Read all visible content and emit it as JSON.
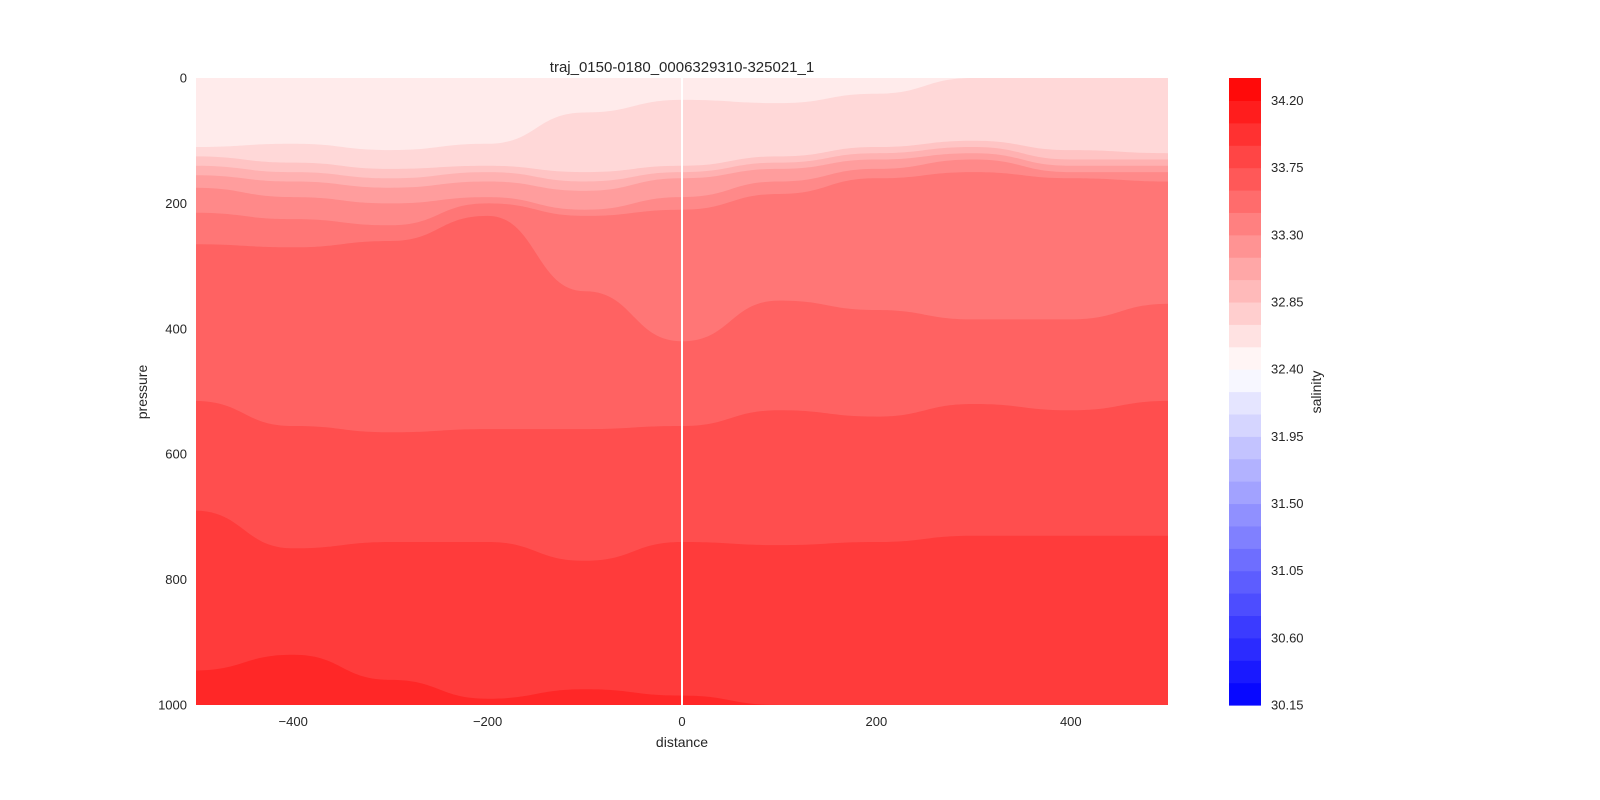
{
  "chart_data": {
    "type": "heatmap",
    "subtype": "filled-contour",
    "title": "traj_0150-0180_0006329310-325021_1",
    "xlabel": "distance",
    "ylabel": "pressure",
    "xlim": [
      -500,
      500
    ],
    "ylim": [
      1000,
      0
    ],
    "y_inverted": true,
    "x_ticks": [
      -400,
      -200,
      0,
      200,
      400
    ],
    "x_tick_labels": [
      "−400",
      "−200",
      "0",
      "200",
      "400"
    ],
    "y_ticks": [
      0,
      200,
      400,
      600,
      800,
      1000
    ],
    "y_tick_labels": [
      "0",
      "200",
      "400",
      "600",
      "800",
      "1000"
    ],
    "grid": false,
    "reference_line": {
      "x": 0,
      "color": "#ffffff"
    },
    "colorbar": {
      "label": "salinity",
      "vmin": 30.15,
      "vmax": 34.35,
      "ticks": [
        30.15,
        30.6,
        31.05,
        31.5,
        31.95,
        32.4,
        32.85,
        33.3,
        33.75,
        34.2
      ],
      "tick_labels": [
        "30.15",
        "30.60",
        "31.05",
        "31.50",
        "31.95",
        "32.40",
        "32.85",
        "33.30",
        "33.75",
        "34.20"
      ],
      "levels_step": 0.15,
      "colormap": "bwr",
      "low_color": "#0000ff",
      "mid_color": "#ffffff",
      "high_color": "#ff0000"
    },
    "x_grid": [
      -500,
      -400,
      -300,
      -200,
      -100,
      0,
      100,
      200,
      300,
      400,
      500
    ],
    "contour_boundaries": [
      {
        "between": [
          32.55,
          32.7
        ],
        "pressure": [
          110,
          105,
          115,
          105,
          55,
          35,
          40,
          25,
          0,
          0,
          0
        ]
      },
      {
        "between": [
          32.7,
          32.85
        ],
        "pressure": [
          125,
          135,
          145,
          140,
          150,
          140,
          125,
          110,
          100,
          115,
          120
        ]
      },
      {
        "between": [
          32.85,
          33.0
        ],
        "pressure": [
          140,
          150,
          160,
          150,
          165,
          150,
          135,
          120,
          110,
          130,
          130
        ]
      },
      {
        "between": [
          33.0,
          33.15
        ],
        "pressure": [
          155,
          165,
          175,
          165,
          180,
          160,
          145,
          130,
          120,
          140,
          140
        ]
      },
      {
        "between": [
          33.15,
          33.3
        ],
        "pressure": [
          175,
          190,
          200,
          190,
          210,
          190,
          165,
          145,
          130,
          150,
          150
        ]
      },
      {
        "between": [
          33.3,
          33.45
        ],
        "pressure": [
          215,
          225,
          235,
          200,
          220,
          210,
          185,
          160,
          150,
          160,
          165
        ]
      },
      {
        "between": [
          33.45,
          33.6
        ],
        "pressure": [
          265,
          270,
          260,
          220,
          340,
          420,
          355,
          370,
          385,
          385,
          360
        ]
      },
      {
        "between": [
          33.6,
          33.75
        ],
        "pressure": [
          515,
          555,
          565,
          560,
          560,
          555,
          530,
          540,
          520,
          530,
          515
        ]
      },
      {
        "between": [
          33.75,
          33.9
        ],
        "pressure": [
          690,
          750,
          740,
          740,
          770,
          740,
          745,
          740,
          730,
          730,
          730
        ]
      },
      {
        "between": [
          33.9,
          34.05
        ],
        "pressure": [
          945,
          920,
          960,
          990,
          975,
          985,
          1000,
          1000,
          1000,
          1000,
          1000
        ]
      }
    ]
  }
}
